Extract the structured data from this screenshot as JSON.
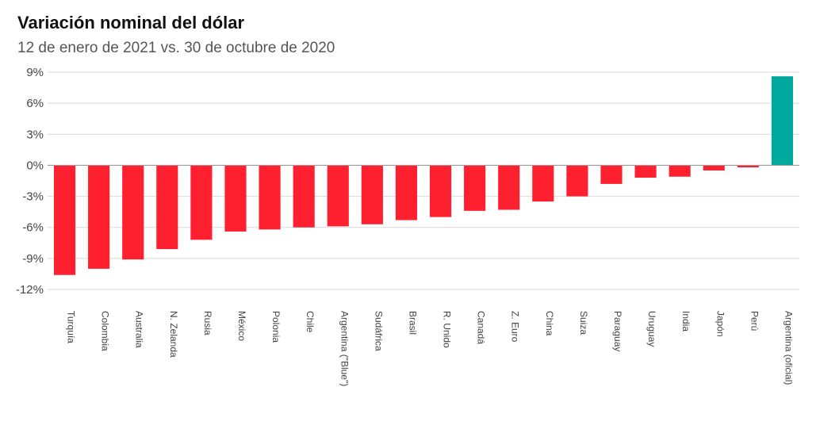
{
  "title": "Variación nominal del dólar",
  "subtitle": "12 de enero de 2021 vs. 30 de octubre de 2020",
  "colors": {
    "negative": "#fe202f",
    "positive": "#00a99d",
    "grid": "#d9d9d9",
    "zero_line": "#9a9a9a"
  },
  "chart_data": {
    "type": "bar",
    "title": "Variación nominal del dólar",
    "subtitle": "12 de enero de 2021 vs. 30 de octubre de 2020",
    "xlabel": "",
    "ylabel": "",
    "ylim": [
      -12,
      9
    ],
    "yticks": [
      9,
      6,
      3,
      0,
      -3,
      -6,
      -9,
      -12
    ],
    "ytick_labels": [
      "9%",
      "6%",
      "3%",
      "0%",
      "-3%",
      "-6%",
      "-9%",
      "-12%"
    ],
    "grid": true,
    "legend": "none",
    "categories": [
      "Turquía",
      "Colombia",
      "Australia",
      "N. Zelanda",
      "Rusia",
      "México",
      "Polonia",
      "Chile",
      "Argentina (\"Blue\")",
      "Sudáfrica",
      "Brasil",
      "R. Unido",
      "Canadá",
      "Z. Euro",
      "China",
      "Suiza",
      "Paraguay",
      "Uruguay",
      "India",
      "Japón",
      "Perú",
      "Argentina (oficial)"
    ],
    "values": [
      -10.6,
      -10.0,
      -9.1,
      -8.1,
      -7.2,
      -6.4,
      -6.2,
      -6.0,
      -5.9,
      -5.7,
      -5.3,
      -5.0,
      -4.4,
      -4.3,
      -3.5,
      -3.0,
      -1.8,
      -1.2,
      -1.1,
      -0.5,
      -0.2,
      8.6
    ]
  }
}
